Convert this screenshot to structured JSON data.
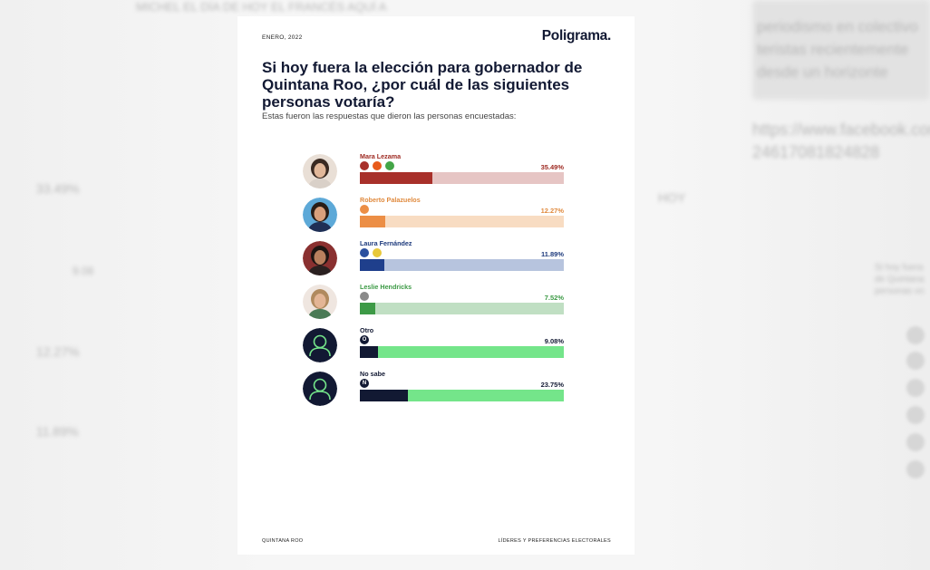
{
  "card": {
    "date": "ENERO, 2022",
    "logo": "Poligrama.",
    "title": "Si hoy fuera la elección para gobernador de Quintana Roo, ¿por cuál de las siguientes personas votaría?",
    "subtitle": "Estas fueron las respuestas que dieron las personas encuestadas:",
    "footer_left": "QUINTANA ROO",
    "footer_right": "LÍDERES Y PREFERENCIAS ELECTORALES"
  },
  "chart_data": {
    "type": "bar",
    "orientation": "horizontal",
    "xlim": [
      0,
      100
    ],
    "categories": [
      "Mara Lezama",
      "Roberto Palazuelos",
      "Laura Fernández",
      "Leslie Hendricks",
      "Otro",
      "No sabe"
    ],
    "values": [
      35.49,
      12.27,
      11.89,
      7.52,
      9.08,
      23.75
    ],
    "labels": [
      "35.49%",
      "12.27%",
      "11.89%",
      "7.52%",
      "9.08%",
      "23.75%"
    ]
  },
  "rows": [
    {
      "avatar": "candidate-photo",
      "name_color": "#9e2a22",
      "fill": "#a8302a",
      "track": "#e6c5c4",
      "logos": [
        {
          "text": "",
          "color": "#a8302a",
          "icon": "party-logo"
        },
        {
          "text": "",
          "color": "#e85a1a",
          "icon": "party-logo"
        },
        {
          "text": "",
          "color": "#43a547",
          "icon": "party-logo"
        }
      ]
    },
    {
      "avatar": "candidate-photo",
      "name_color": "#e08a3e",
      "fill": "#ec8e45",
      "track": "#f8dcc2",
      "logos": [
        {
          "text": "",
          "color": "#ec8e45",
          "icon": "party-logo"
        }
      ]
    },
    {
      "avatar": "candidate-photo",
      "name_color": "#1d3a7c",
      "fill": "#1f3f8c",
      "track": "#b7c4de",
      "logos": [
        {
          "text": "",
          "color": "#2a4f9e",
          "icon": "party-logo"
        },
        {
          "text": "",
          "color": "#e8c83a",
          "icon": "party-logo"
        }
      ]
    },
    {
      "avatar": "candidate-photo",
      "name_color": "#3c9a45",
      "fill": "#3d9a46",
      "track": "#c0dfc3",
      "logos": [
        {
          "text": "",
          "color": "#8a8a8a",
          "icon": "party-logo"
        }
      ]
    },
    {
      "avatar": "person-silhouette",
      "name_color": "#121933",
      "fill": "#121933",
      "track": "#74e58a",
      "logos": [
        {
          "text": "O",
          "color": "#121933",
          "icon": "letter-badge"
        }
      ]
    },
    {
      "avatar": "person-silhouette",
      "name_color": "#121933",
      "fill": "#121933",
      "track": "#74e58a",
      "logos": [
        {
          "text": "N",
          "color": "#121933",
          "icon": "letter-badge"
        }
      ]
    }
  ]
}
